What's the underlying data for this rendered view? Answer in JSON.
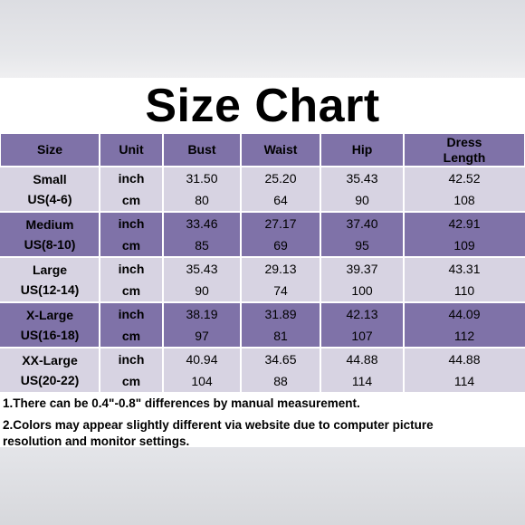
{
  "title": "Size Chart",
  "colors": {
    "header": "#7f72a8",
    "band_dark": "#7f72a8",
    "band_light": "#d7d3e2"
  },
  "headers": {
    "size": "Size",
    "unit": "Unit",
    "bust": "Bust",
    "waist": "Waist",
    "hip": "Hip",
    "dress_length_1": "Dress",
    "dress_length_2": "Length"
  },
  "rows": [
    {
      "name": "Small",
      "range": "US(4-6)",
      "inch": {
        "unit": "inch",
        "bust": "31.50",
        "waist": "25.20",
        "hip": "35.43",
        "length": "42.52"
      },
      "cm": {
        "unit": "cm",
        "bust": "80",
        "waist": "64",
        "hip": "90",
        "length": "108"
      }
    },
    {
      "name": "Medium",
      "range": "US(8-10)",
      "inch": {
        "unit": "inch",
        "bust": "33.46",
        "waist": "27.17",
        "hip": "37.40",
        "length": "42.91"
      },
      "cm": {
        "unit": "cm",
        "bust": "85",
        "waist": "69",
        "hip": "95",
        "length": "109"
      }
    },
    {
      "name": "Large",
      "range": "US(12-14)",
      "inch": {
        "unit": "inch",
        "bust": "35.43",
        "waist": "29.13",
        "hip": "39.37",
        "length": "43.31"
      },
      "cm": {
        "unit": "cm",
        "bust": "90",
        "waist": "74",
        "hip": "100",
        "length": "110"
      }
    },
    {
      "name": "X-Large",
      "range": "US(16-18)",
      "inch": {
        "unit": "inch",
        "bust": "38.19",
        "waist": "31.89",
        "hip": "42.13",
        "length": "44.09"
      },
      "cm": {
        "unit": "cm",
        "bust": "97",
        "waist": "81",
        "hip": "107",
        "length": "112"
      }
    },
    {
      "name": "XX-Large",
      "range": "US(20-22)",
      "inch": {
        "unit": "inch",
        "bust": "40.94",
        "waist": "34.65",
        "hip": "44.88",
        "length": "44.88"
      },
      "cm": {
        "unit": "cm",
        "bust": "104",
        "waist": "88",
        "hip": "114",
        "length": "114"
      }
    }
  ],
  "notes": {
    "note1": "1.There can be 0.4\"-0.8\" differences by manual measurement.",
    "note2_line1": "2.Colors may appear slightly different via website due to computer picture",
    "note2_line2": "resolution and monitor settings."
  }
}
